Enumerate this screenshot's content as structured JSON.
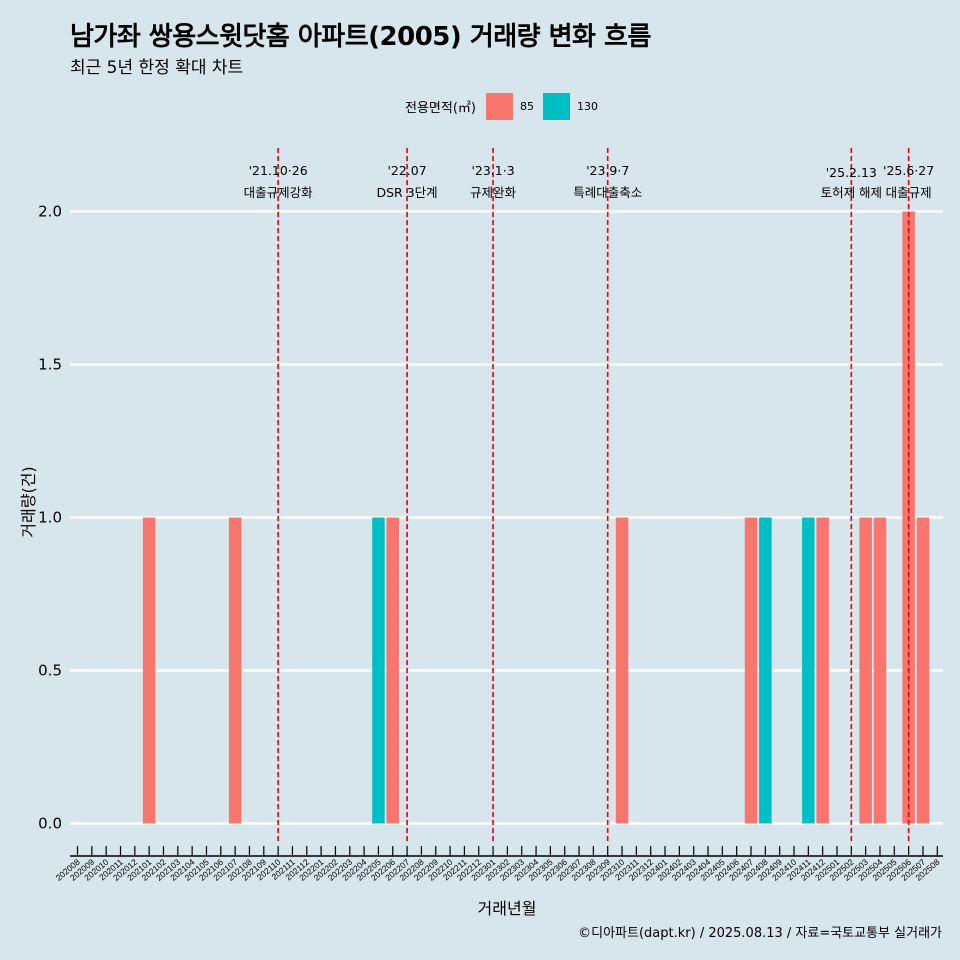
{
  "header": {
    "title": "남가좌 쌍용스윗닷홈 아파트(2005) 거래량 변화 흐름",
    "subtitle": "최근 5년 한정 확대 차트"
  },
  "legend": {
    "title": "전용면적(㎡)",
    "items": [
      {
        "label": "85",
        "color": "#f8766d"
      },
      {
        "label": "130",
        "color": "#00bfc4"
      }
    ]
  },
  "caption": "©디아파트(dapt.kr) / 2025.08.13 / 자료=국토교통부 실거래가",
  "chart_data": {
    "type": "bar",
    "xlabel": "거래년월",
    "ylabel": "거래량(건)",
    "ylim": [
      -0.08,
      2.2
    ],
    "yticks": [
      0.0,
      0.5,
      1.0,
      1.5,
      2.0
    ],
    "ytick_labels": [
      "0.0",
      "0.5",
      "1.0",
      "1.5",
      "2.0"
    ],
    "grid": true,
    "legend_position": "top",
    "categories": [
      "202008",
      "202009",
      "202010",
      "202011",
      "202012",
      "202101",
      "202102",
      "202103",
      "202104",
      "202105",
      "202106",
      "202107",
      "202108",
      "202109",
      "202110",
      "202111",
      "202112",
      "202201",
      "202202",
      "202203",
      "202204",
      "202205",
      "202206",
      "202207",
      "202208",
      "202209",
      "202210",
      "202211",
      "202212",
      "202301",
      "202302",
      "202303",
      "202304",
      "202305",
      "202306",
      "202307",
      "202308",
      "202309",
      "202310",
      "202311",
      "202312",
      "202401",
      "202402",
      "202403",
      "202404",
      "202405",
      "202406",
      "202407",
      "202408",
      "202409",
      "202410",
      "202411",
      "202412",
      "202501",
      "202502",
      "202503",
      "202504",
      "202505",
      "202506",
      "202507",
      "202508"
    ],
    "series": [
      {
        "name": "85",
        "color": "#f8766d",
        "values": [
          0,
          0,
          0,
          0,
          0,
          1,
          0,
          0,
          0,
          0,
          0,
          1,
          0,
          0,
          0,
          0,
          0,
          0,
          0,
          0,
          0,
          0,
          1,
          0,
          0,
          0,
          0,
          0,
          0,
          0,
          0,
          0,
          0,
          0,
          0,
          0,
          0,
          0,
          1,
          0,
          0,
          0,
          0,
          0,
          0,
          0,
          0,
          1,
          0,
          0,
          0,
          0,
          1,
          0,
          0,
          1,
          1,
          0,
          2,
          1,
          0
        ]
      },
      {
        "name": "130",
        "color": "#00bfc4",
        "values": [
          0,
          0,
          0,
          0,
          0,
          0,
          0,
          0,
          0,
          0,
          0,
          0,
          0,
          0,
          0,
          0,
          0,
          0,
          0,
          0,
          0,
          1,
          0,
          0,
          0,
          0,
          0,
          0,
          0,
          0,
          0,
          0,
          0,
          0,
          0,
          0,
          0,
          0,
          0,
          0,
          0,
          0,
          0,
          0,
          0,
          0,
          0,
          0,
          1,
          0,
          0,
          1,
          0,
          0,
          0,
          0,
          0,
          0,
          0,
          0,
          0
        ]
      }
    ],
    "annotations": [
      {
        "x": 14.0,
        "line1": "'21.10·26",
        "line2": "대출규제강화"
      },
      {
        "x": 23.0,
        "line1": "'22.07",
        "line2": "DSR 3단계"
      },
      {
        "x": 29.0,
        "line1": "'23.1·3",
        "line2": "규제완화"
      },
      {
        "x": 37.0,
        "line1": "'23.9·7",
        "line2": "특례대출축소"
      },
      {
        "x": 54.0,
        "line1": "'25.2.13",
        "line2": "토허제 해제"
      },
      {
        "x": 58.0,
        "line1": "'25.6·27",
        "line2": "대출규제"
      }
    ],
    "annotation_line_color": "#e8000b"
  }
}
